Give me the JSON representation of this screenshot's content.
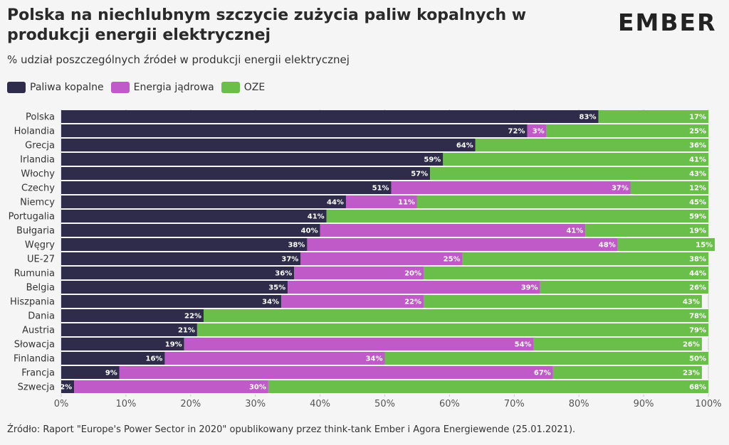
{
  "header": {
    "title": "Polska na niechlubnym szczycie zużycia paliw kopalnych w produkcji energii elektrycznej",
    "subtitle": "% udział poszczególnych źródeł w produkcji energii elektrycznej",
    "logo_text": "EMBER"
  },
  "legend": {
    "items": [
      {
        "label": "Paliwa kopalne",
        "color": "#2e2c4a"
      },
      {
        "label": "Energia jądrowa",
        "color": "#bf5ac8"
      },
      {
        "label": "OZE",
        "color": "#6abf4b"
      }
    ]
  },
  "footer": {
    "source": "Źródło: Raport \"Europe's Power Sector in 2020\" opublikowany przez think-tank Ember i Agora Energiewende (25.01.2021)."
  },
  "chart_data": {
    "type": "bar",
    "orientation": "horizontal",
    "stacked": true,
    "title": "Polska na niechlubnym szczycie zużycia paliw kopalnych w produkcji energii elektrycznej",
    "subtitle": "% udział poszczególnych źródeł w produkcji energii elektrycznej",
    "categories": [
      "Polska",
      "Holandia",
      "Grecja",
      "Irlandia",
      "Włochy",
      "Czechy",
      "Niemcy",
      "Portugalia",
      "Bułgaria",
      "Węgry",
      "UE-27",
      "Rumunia",
      "Belgia",
      "Hiszpania",
      "Dania",
      "Austria",
      "Słowacja",
      "Finlandia",
      "Francja",
      "Szwecja"
    ],
    "series": [
      {
        "name": "Paliwa kopalne",
        "color": "#2e2c4a",
        "values": [
          83,
          72,
          64,
          59,
          57,
          51,
          44,
          41,
          40,
          38,
          37,
          36,
          35,
          34,
          22,
          21,
          19,
          16,
          9,
          2
        ]
      },
      {
        "name": "Energia jądrowa",
        "color": "#bf5ac8",
        "values": [
          0,
          3,
          0,
          0,
          0,
          37,
          11,
          0,
          41,
          48,
          25,
          20,
          39,
          22,
          0,
          0,
          54,
          34,
          67,
          30
        ]
      },
      {
        "name": "OZE",
        "color": "#6abf4b",
        "values": [
          17,
          25,
          36,
          41,
          43,
          12,
          45,
          59,
          19,
          15,
          38,
          44,
          26,
          43,
          78,
          79,
          26,
          50,
          23,
          68
        ]
      }
    ],
    "xlim": [
      0,
      100
    ],
    "x_ticks": [
      "0%",
      "10%",
      "20%",
      "30%",
      "40%",
      "50%",
      "60%",
      "70%",
      "80%",
      "90%",
      "100%"
    ],
    "xlabel": "",
    "ylabel": "",
    "legend_position": "top-left",
    "grid": true
  }
}
